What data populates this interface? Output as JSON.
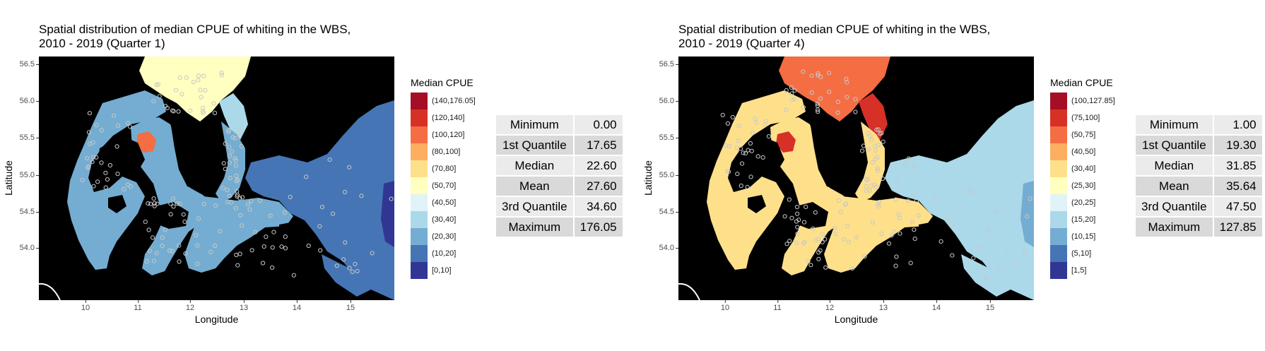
{
  "panels": [
    {
      "title_line1": "Spatial distribution of median CPUE of whiting in the WBS,",
      "title_line2": "2010 - 2019 (Quarter 1)",
      "xlabel": "Longitude",
      "ylabel": "Latitude",
      "x_ticks": [
        "10",
        "11",
        "12",
        "13",
        "14",
        "15"
      ],
      "y_ticks": [
        "56.5",
        "56.0",
        "55.5",
        "55.0",
        "54.5",
        "54.0"
      ],
      "legend_title": "Median CPUE",
      "legend": [
        {
          "label": "(140,176.05]",
          "color": "#a50f26"
        },
        {
          "label": "(120,140]",
          "color": "#d73027"
        },
        {
          "label": "(100,120]",
          "color": "#f46d43"
        },
        {
          "label": "(80,100]",
          "color": "#fdae61"
        },
        {
          "label": "(70,80]",
          "color": "#fee08b"
        },
        {
          "label": "(50,70]",
          "color": "#ffffbf"
        },
        {
          "label": "(40,50]",
          "color": "#e0f3f8"
        },
        {
          "label": "(30,40]",
          "color": "#abd9e9"
        },
        {
          "label": "(20,30]",
          "color": "#74add1"
        },
        {
          "label": "(10,20]",
          "color": "#4575b4"
        },
        {
          "label": "[0,10]",
          "color": "#313695"
        }
      ],
      "stats": [
        {
          "name": "Minimum",
          "value": "0.00"
        },
        {
          "name": "1st Quantile",
          "value": "17.65"
        },
        {
          "name": "Median",
          "value": "22.60"
        },
        {
          "name": "Mean",
          "value": "27.60"
        },
        {
          "name": "3rd Quantile",
          "value": "34.60"
        },
        {
          "name": "Maximum",
          "value": "176.05"
        }
      ],
      "fill": {
        "north": "#ffffbf",
        "kattegat_edge": "#abd9e9",
        "west": "#74add1",
        "center": "#74add1",
        "east": "#4575b4",
        "hotspot": "#f46d43",
        "far_east": "#313695"
      }
    },
    {
      "title_line1": "Spatial distribution of median CPUE of whiting in the WBS,",
      "title_line2": "2010 - 2019 (Quarter 4)",
      "xlabel": "Longitude",
      "ylabel": "Latitude",
      "x_ticks": [
        "10",
        "11",
        "12",
        "13",
        "14",
        "15"
      ],
      "y_ticks": [
        "56.5",
        "56.0",
        "55.5",
        "55.0",
        "54.5",
        "54.0"
      ],
      "legend_title": "Median CPUE",
      "legend": [
        {
          "label": "(100,127.85]",
          "color": "#a50f26"
        },
        {
          "label": "(75,100]",
          "color": "#d73027"
        },
        {
          "label": "(50,75]",
          "color": "#f46d43"
        },
        {
          "label": "(40,50]",
          "color": "#fdae61"
        },
        {
          "label": "(30,40]",
          "color": "#fee08b"
        },
        {
          "label": "(25,30]",
          "color": "#ffffbf"
        },
        {
          "label": "(20,25]",
          "color": "#e0f3f8"
        },
        {
          "label": "(15,20]",
          "color": "#abd9e9"
        },
        {
          "label": "(10,15]",
          "color": "#74add1"
        },
        {
          "label": "(5,10]",
          "color": "#4575b4"
        },
        {
          "label": "[1,5]",
          "color": "#313695"
        }
      ],
      "stats": [
        {
          "name": "Minimum",
          "value": "1.00"
        },
        {
          "name": "1st Quantile",
          "value": "19.30"
        },
        {
          "name": "Median",
          "value": "31.85"
        },
        {
          "name": "Mean",
          "value": "35.64"
        },
        {
          "name": "3rd Quantile",
          "value": "47.50"
        },
        {
          "name": "Maximum",
          "value": "127.85"
        }
      ],
      "fill": {
        "north": "#f46d43",
        "kattegat_edge": "#d73027",
        "west": "#fee08b",
        "center": "#fee08b",
        "east": "#abd9e9",
        "hotspot": "#d73027",
        "far_east": "#74add1"
      }
    }
  ]
}
